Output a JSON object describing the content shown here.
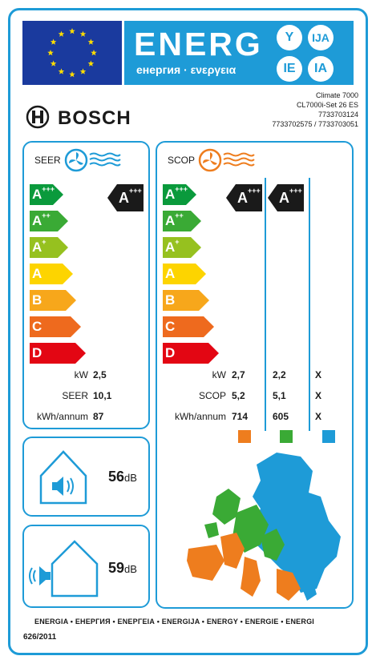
{
  "header": {
    "title": "ENERG",
    "subtitle": "енергия · ενεργεια",
    "lang_letters": [
      "Y",
      "IJA",
      "IE",
      "IA"
    ]
  },
  "brand": {
    "name": "BOSCH"
  },
  "model": {
    "line1": "Climate 7000",
    "line2": "CL7000i-Set 26 ES",
    "line3": "7733703124",
    "line4": "7733702575 / 7733703051"
  },
  "seer": {
    "title": "SEER",
    "scale": [
      {
        "letter": "A",
        "plus": "+++",
        "color": "#0a9a3c"
      },
      {
        "letter": "A",
        "plus": "++",
        "color": "#3aaa35"
      },
      {
        "letter": "A",
        "plus": "+",
        "color": "#96c11f"
      },
      {
        "letter": "A",
        "plus": "",
        "color": "#fdd400"
      },
      {
        "letter": "B",
        "plus": "",
        "color": "#f7a71b"
      },
      {
        "letter": "C",
        "plus": "",
        "color": "#ee6a1e"
      },
      {
        "letter": "D",
        "plus": "",
        "color": "#e30613"
      }
    ],
    "rating": {
      "letter": "A",
      "plus": "+++"
    },
    "rows": [
      {
        "label": "kW",
        "value": "2,5"
      },
      {
        "label": "SEER",
        "value": "10,1"
      },
      {
        "label": "kWh/annum",
        "value": "87"
      }
    ]
  },
  "scop": {
    "title": "SCOP",
    "rating_warm": {
      "letter": "A",
      "plus": "+++"
    },
    "rating_average": {
      "letter": "A",
      "plus": "+++"
    },
    "rows": [
      {
        "label": "kW",
        "v1": "2,7",
        "v2": "2,2",
        "v3": "X"
      },
      {
        "label": "SCOP",
        "v1": "5,2",
        "v2": "5,1",
        "v3": "X"
      },
      {
        "label": "kWh/annum",
        "v1": "714",
        "v2": "605",
        "v3": "X"
      }
    ],
    "zone_colors": [
      "#ee7d1e",
      "#3aaa35",
      "#1e9bd7"
    ]
  },
  "noise": {
    "indoor": {
      "value": "56",
      "unit": "dB"
    },
    "outdoor": {
      "value": "59",
      "unit": "dB"
    }
  },
  "footer": {
    "languages": "ENERGIA • ЕНЕРГИЯ • ΕΝΕΡΓΕΙΑ • ENERGIJA • ENERGY • ENERGIE • ENERGI",
    "regulation": "626/2011"
  }
}
